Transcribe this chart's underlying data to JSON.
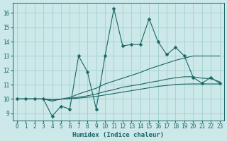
{
  "xlabel": "Humidex (Indice chaleur)",
  "ylabel": "",
  "xlim": [
    -0.5,
    23.5
  ],
  "ylim": [
    8.5,
    16.7
  ],
  "yticks": [
    9,
    10,
    11,
    12,
    13,
    14,
    15,
    16
  ],
  "xticks": [
    0,
    1,
    2,
    3,
    4,
    5,
    6,
    7,
    8,
    9,
    10,
    11,
    12,
    13,
    14,
    15,
    16,
    17,
    18,
    19,
    20,
    21,
    22,
    23
  ],
  "bg_color": "#cce8e8",
  "grid_color": "#99cccc",
  "line_color": "#1a6666",
  "series": {
    "volatile": {
      "x": [
        0,
        1,
        2,
        3,
        4,
        5,
        6,
        7,
        8,
        9,
        10,
        11,
        12,
        13,
        14,
        15,
        16,
        17,
        18,
        19,
        20,
        21,
        22,
        23
      ],
      "y": [
        10,
        10,
        10,
        10,
        8.8,
        9.5,
        9.3,
        13.0,
        11.9,
        9.3,
        13.0,
        16.3,
        13.7,
        13.8,
        13.8,
        15.6,
        14.0,
        13.1,
        13.6,
        13.0,
        11.5,
        11.1,
        11.5,
        11.1
      ],
      "has_marker": true
    },
    "smooth1": {
      "x": [
        0,
        1,
        2,
        3,
        4,
        5,
        6,
        7,
        8,
        9,
        10,
        11,
        12,
        13,
        14,
        15,
        16,
        17,
        18,
        19,
        20,
        21,
        22,
        23
      ],
      "y": [
        10.0,
        10.0,
        10.0,
        10.0,
        9.85,
        10.0,
        10.1,
        10.35,
        10.55,
        10.75,
        11.05,
        11.25,
        11.45,
        11.65,
        11.85,
        12.1,
        12.3,
        12.5,
        12.7,
        12.85,
        13.0,
        13.0,
        13.0,
        13.0
      ],
      "has_marker": false
    },
    "smooth2": {
      "x": [
        0,
        1,
        2,
        3,
        4,
        5,
        6,
        7,
        8,
        9,
        10,
        11,
        12,
        13,
        14,
        15,
        16,
        17,
        18,
        19,
        20,
        21,
        22,
        23
      ],
      "y": [
        10.0,
        10.0,
        10.0,
        10.0,
        9.92,
        9.98,
        10.05,
        10.12,
        10.22,
        10.35,
        10.52,
        10.65,
        10.82,
        10.92,
        11.02,
        11.15,
        11.25,
        11.38,
        11.48,
        11.55,
        11.55,
        11.45,
        11.42,
        11.2
      ],
      "has_marker": false
    },
    "smooth3": {
      "x": [
        0,
        1,
        2,
        3,
        4,
        5,
        6,
        7,
        8,
        9,
        10,
        11,
        12,
        13,
        14,
        15,
        16,
        17,
        18,
        19,
        20,
        21,
        22,
        23
      ],
      "y": [
        10.0,
        10.0,
        10.0,
        10.0,
        9.96,
        9.99,
        10.02,
        10.06,
        10.12,
        10.18,
        10.28,
        10.38,
        10.48,
        10.58,
        10.68,
        10.78,
        10.88,
        10.94,
        11.02,
        11.04,
        11.05,
        11.05,
        11.05,
        11.05
      ],
      "has_marker": false
    }
  },
  "marker": "D",
  "markersize": 2.5,
  "linewidth": 0.8,
  "font_color": "#1a6666",
  "tick_fontsize": 5.5,
  "label_fontsize": 6.5
}
